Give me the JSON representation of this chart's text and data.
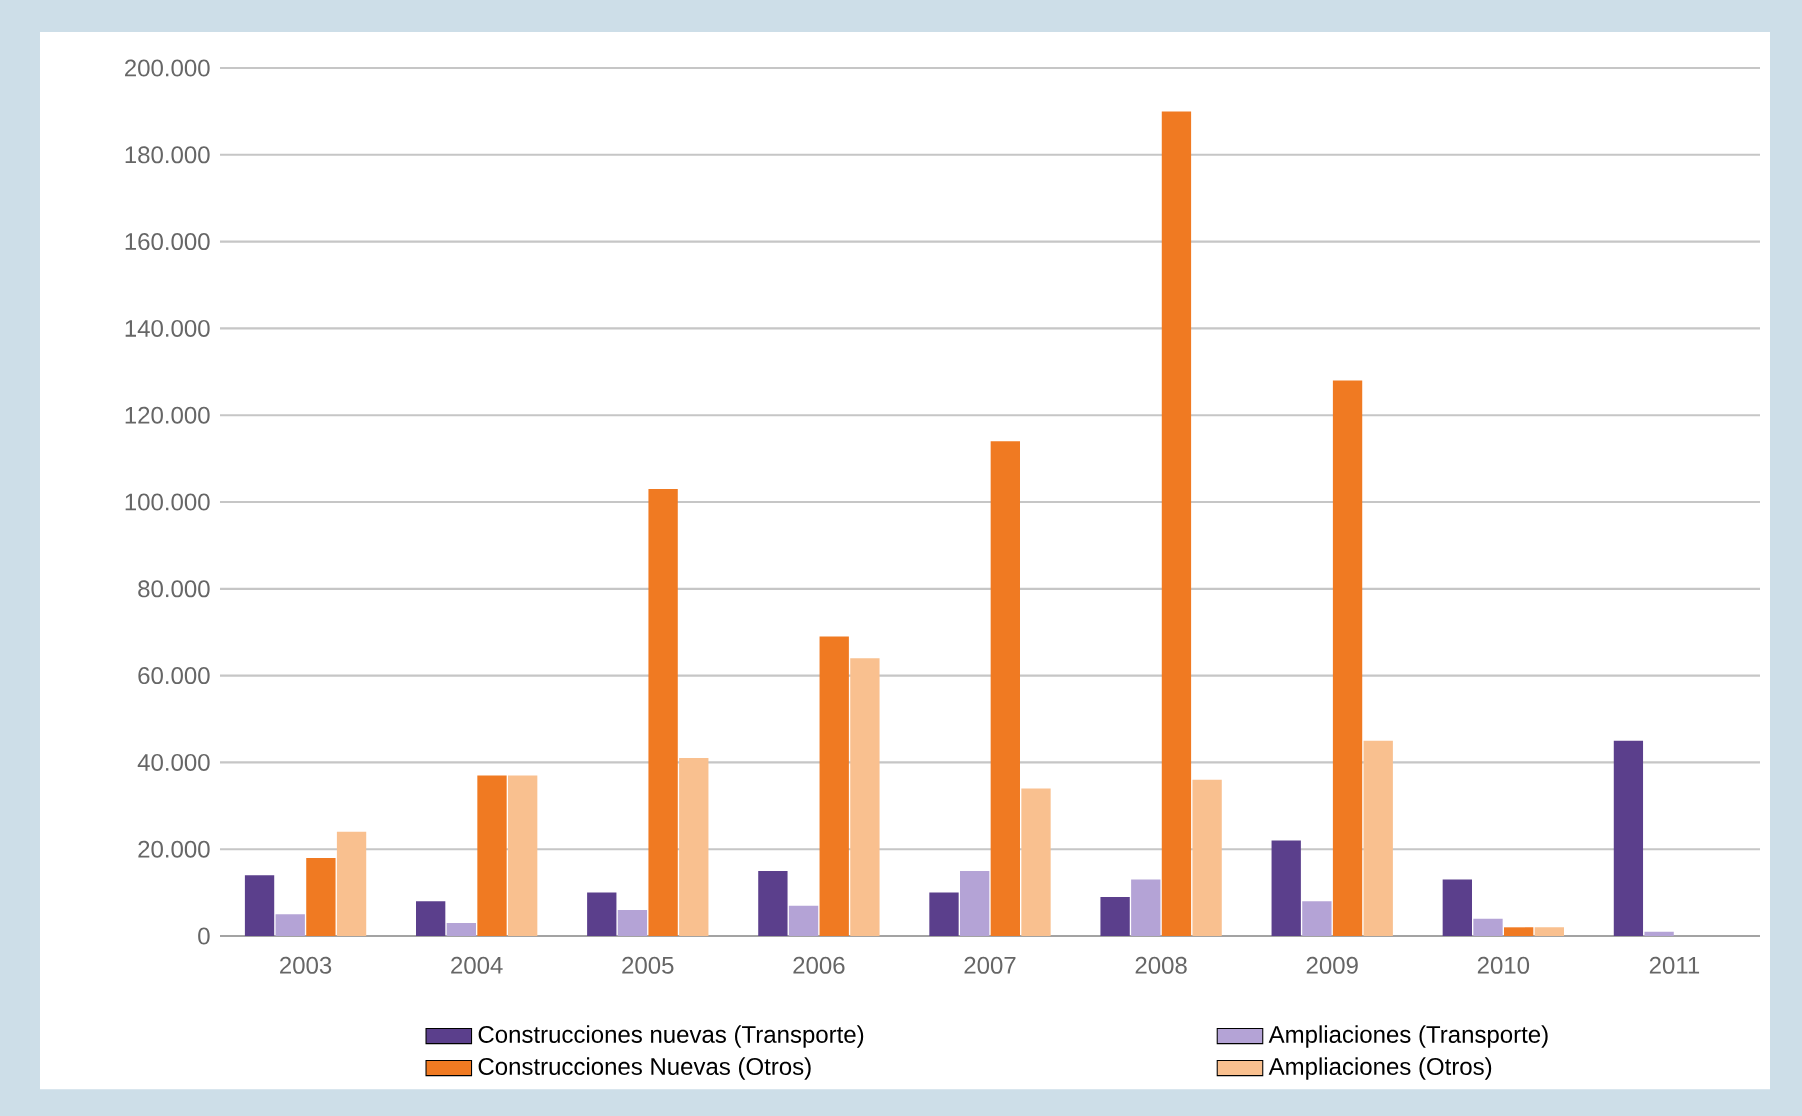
{
  "chart_data": {
    "type": "bar",
    "categories": [
      "2003",
      "2004",
      "2005",
      "2006",
      "2007",
      "2008",
      "2009",
      "2010",
      "2011"
    ],
    "series": [
      {
        "name": "Construcciones nuevas (Transporte)",
        "color": "#5b3f8c",
        "values": [
          14000,
          8000,
          10000,
          15000,
          10000,
          9000,
          22000,
          13000,
          45000
        ]
      },
      {
        "name": "Ampliaciones (Transporte)",
        "color": "#b4a3d6",
        "values": [
          5000,
          3000,
          6000,
          7000,
          15000,
          13000,
          8000,
          4000,
          1000
        ]
      },
      {
        "name": "Construcciones Nuevas (Otros)",
        "color": "#f07a22",
        "values": [
          18000,
          37000,
          103000,
          69000,
          114000,
          190000,
          128000,
          2000,
          0
        ]
      },
      {
        "name": "Ampliaciones (Otros)",
        "color": "#f9c08f",
        "values": [
          24000,
          37000,
          41000,
          64000,
          34000,
          36000,
          45000,
          2000,
          0
        ]
      }
    ],
    "ylim": [
      0,
      200000
    ],
    "yticks": [
      {
        "value": 0,
        "label": "0"
      },
      {
        "value": 20000,
        "label": "20.000"
      },
      {
        "value": 40000,
        "label": "40.000"
      },
      {
        "value": 60000,
        "label": "60.000"
      },
      {
        "value": 80000,
        "label": "80.000"
      },
      {
        "value": 100000,
        "label": "100.000"
      },
      {
        "value": 120000,
        "label": "120.000"
      },
      {
        "value": 140000,
        "label": "140.000"
      },
      {
        "value": 160000,
        "label": "160.000"
      },
      {
        "value": 180000,
        "label": "180.000"
      },
      {
        "value": 200000,
        "label": "200.000"
      }
    ],
    "grid": "y",
    "legend": "bottom"
  }
}
